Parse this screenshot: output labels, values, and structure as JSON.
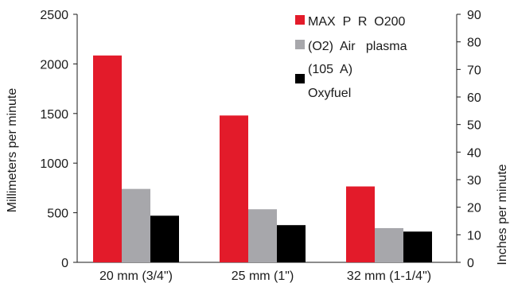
{
  "chart_data": {
    "type": "bar",
    "title": "",
    "categories": [
      "20  mm  (3/4\")",
      "25  mm  (1\")",
      "32  mm  (1-1/4\")"
    ],
    "series": [
      {
        "name": "MAX  P  R  O200",
        "color": "#e31b2a",
        "values": [
          2085,
          1480,
          765
        ]
      },
      {
        "name": "(O2)  Air   plasma",
        "color": "#a7a7ab",
        "values": [
          740,
          535,
          345
        ]
      },
      {
        "name": "(105  A)",
        "color": "#000000",
        "values": [
          470,
          375,
          310
        ]
      }
    ],
    "legend_extra_line": "Oxyfuel",
    "legend_position": "top-right",
    "ylabel": "Millimeters  per  minute",
    "ylabel_right": "Inches per minute",
    "ylim": [
      0,
      2500
    ],
    "yticks": [
      "0",
      "500",
      "1000",
      "1500",
      "2000",
      "2500"
    ],
    "ylim_right": [
      0,
      90
    ],
    "yticks_right": [
      "0",
      "10",
      "20",
      "30",
      "40",
      "50",
      "60",
      "70",
      "80",
      "90"
    ],
    "grid": false
  }
}
